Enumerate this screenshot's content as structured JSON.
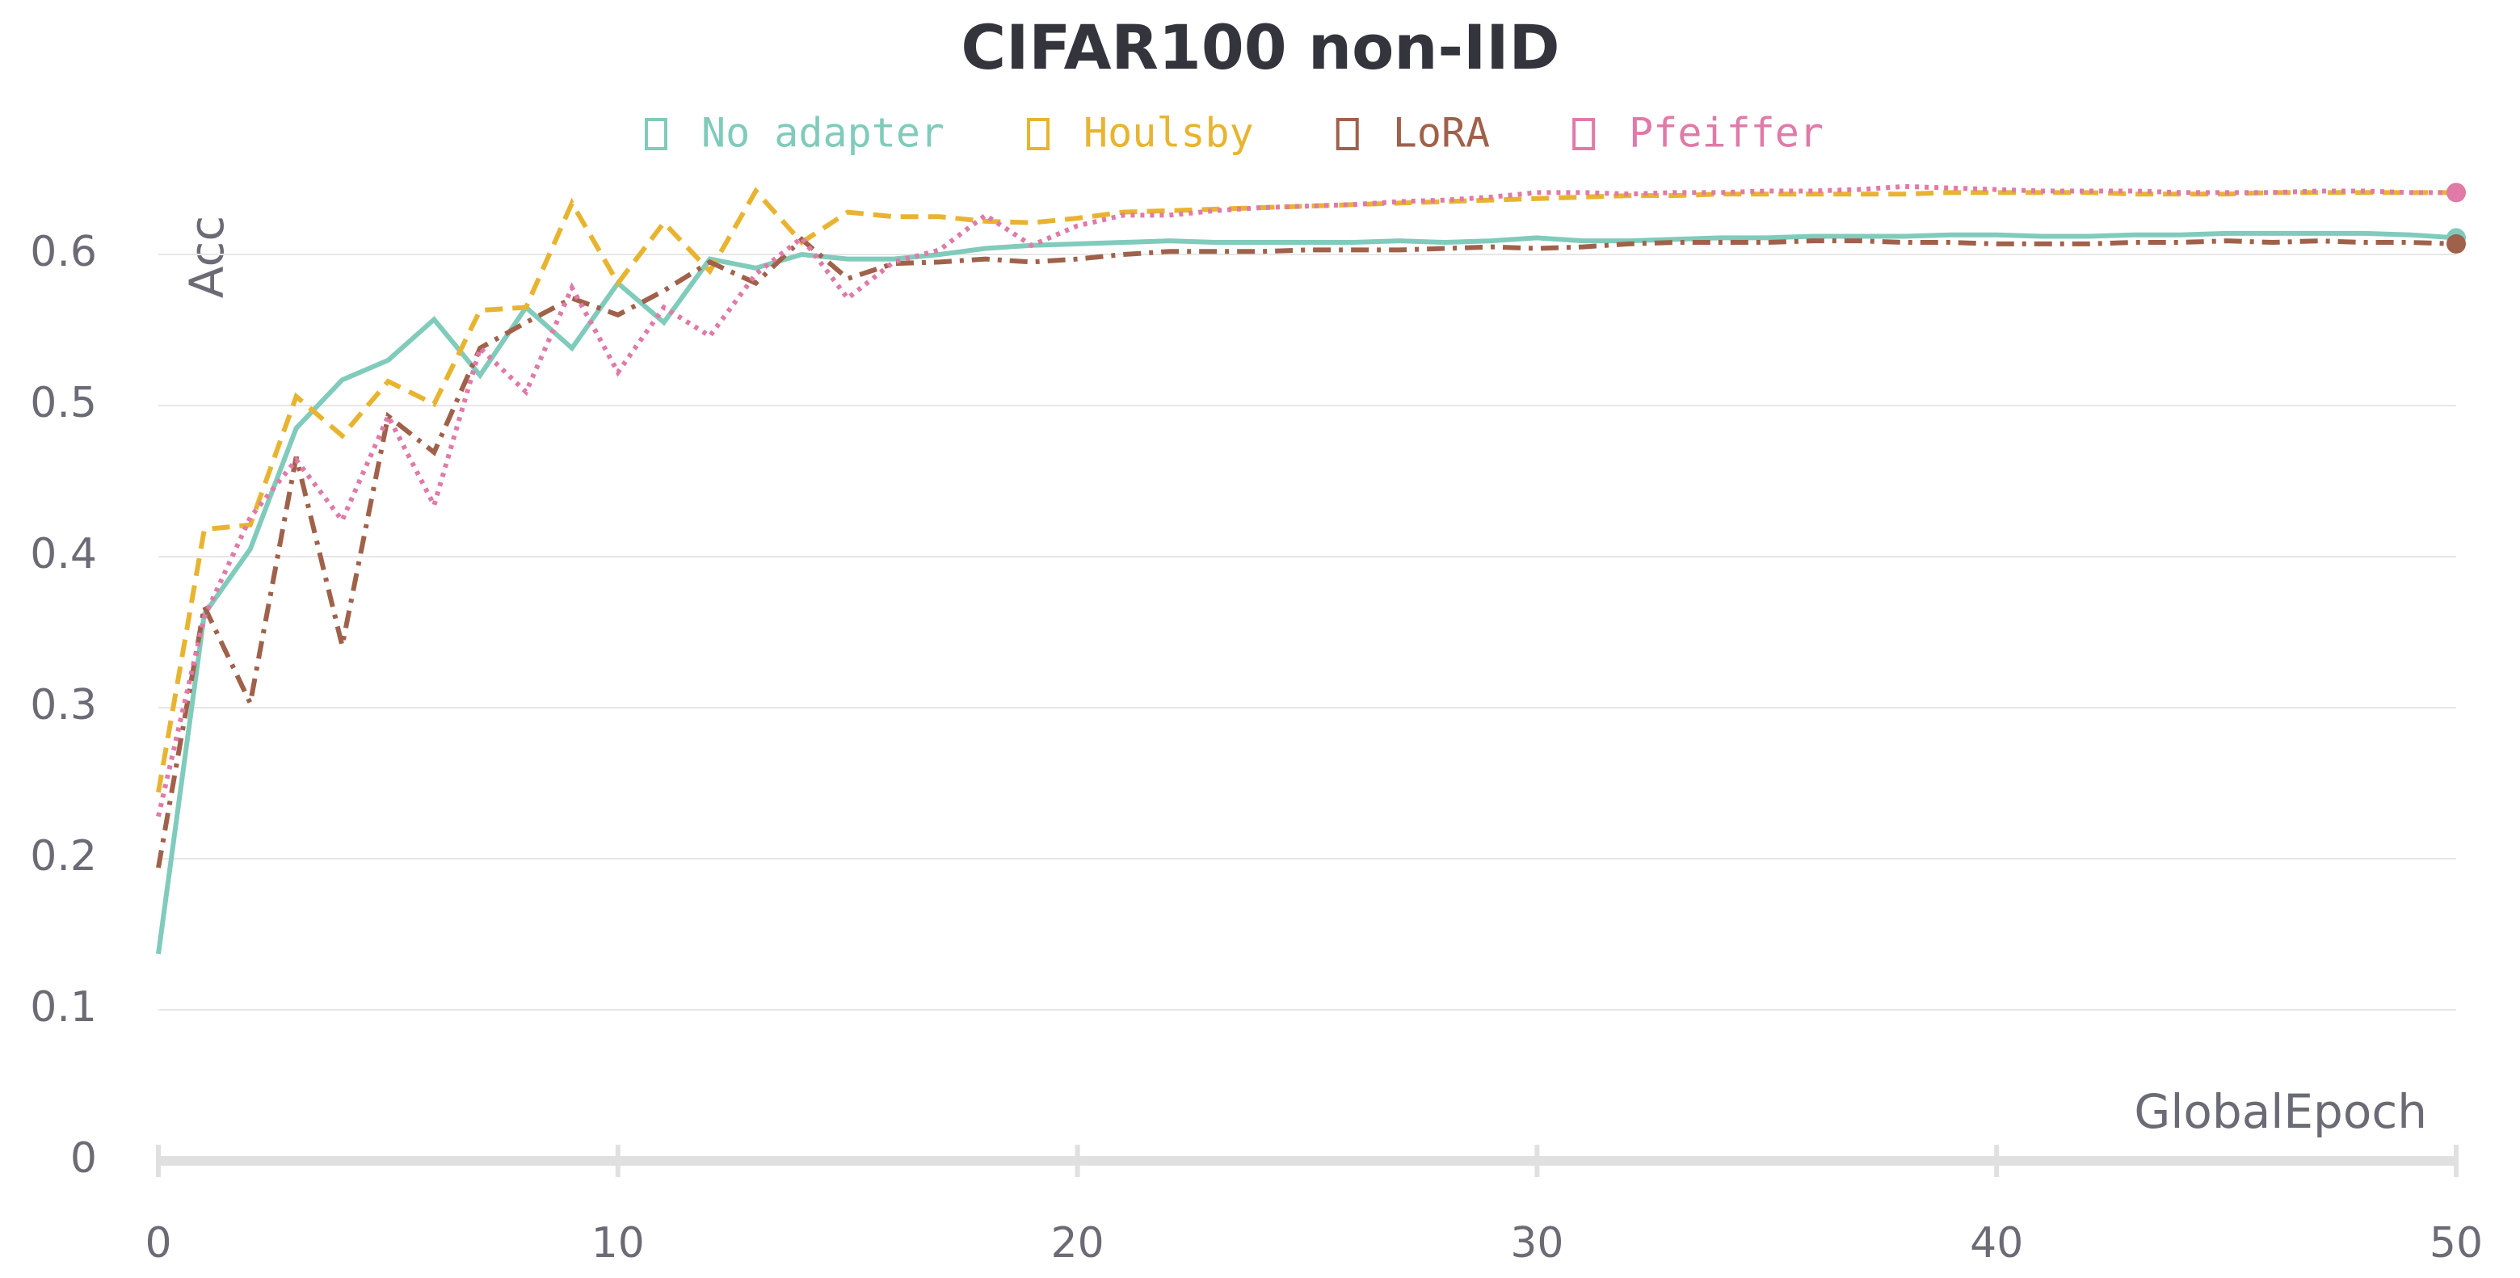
{
  "chart_data": {
    "type": "line",
    "title": "CIFAR100 non-IID",
    "xlabel": "GlobalEpoch",
    "ylabel": "Acc",
    "x": [
      0,
      1,
      2,
      3,
      4,
      5,
      6,
      7,
      8,
      9,
      10,
      11,
      12,
      13,
      14,
      15,
      16,
      17,
      18,
      19,
      20,
      21,
      22,
      23,
      24,
      25,
      26,
      27,
      28,
      29,
      30,
      31,
      32,
      33,
      34,
      35,
      36,
      37,
      38,
      39,
      40,
      41,
      42,
      43,
      44,
      45,
      46,
      47,
      48,
      49,
      50
    ],
    "xlim": [
      0,
      50
    ],
    "xticks": [
      0,
      10,
      20,
      30,
      40,
      50
    ],
    "ylim": [
      0,
      0.65
    ],
    "yticks": [
      0,
      0.1,
      0.2,
      0.3,
      0.4,
      0.5,
      0.6
    ],
    "grid": true,
    "series": [
      {
        "name": "No adapter",
        "color": "#80cbbb",
        "dash": "solid",
        "values": [
          0.137,
          0.362,
          0.405,
          0.485,
          0.517,
          0.53,
          0.557,
          0.52,
          0.565,
          0.538,
          0.581,
          0.555,
          0.597,
          0.591,
          0.6,
          0.597,
          0.597,
          0.6,
          0.604,
          0.606,
          0.607,
          0.608,
          0.609,
          0.608,
          0.608,
          0.608,
          0.608,
          0.609,
          0.608,
          0.609,
          0.611,
          0.609,
          0.609,
          0.61,
          0.611,
          0.611,
          0.612,
          0.612,
          0.612,
          0.613,
          0.613,
          0.612,
          0.612,
          0.613,
          0.613,
          0.614,
          0.614,
          0.614,
          0.614,
          0.613,
          0.611
        ]
      },
      {
        "name": "Houlsby",
        "color": "#e8b430",
        "dash": "dashed",
        "values": [
          0.244,
          0.418,
          0.421,
          0.506,
          0.48,
          0.516,
          0.501,
          0.563,
          0.565,
          0.634,
          0.581,
          0.621,
          0.589,
          0.642,
          0.608,
          0.628,
          0.625,
          0.625,
          0.622,
          0.621,
          0.624,
          0.628,
          0.629,
          0.63,
          0.631,
          0.632,
          0.633,
          0.634,
          0.635,
          0.636,
          0.637,
          0.638,
          0.639,
          0.639,
          0.64,
          0.64,
          0.64,
          0.64,
          0.64,
          0.641,
          0.641,
          0.641,
          0.641,
          0.64,
          0.64,
          0.64,
          0.641,
          0.641,
          0.641,
          0.641,
          0.641
        ]
      },
      {
        "name": "LoRA",
        "color": "#a0614a",
        "dash": "dashdot",
        "values": [
          0.194,
          0.367,
          0.303,
          0.466,
          0.341,
          0.493,
          0.469,
          0.538,
          0.555,
          0.571,
          0.56,
          0.576,
          0.595,
          0.581,
          0.61,
          0.584,
          0.594,
          0.595,
          0.597,
          0.595,
          0.597,
          0.6,
          0.602,
          0.602,
          0.602,
          0.603,
          0.603,
          0.603,
          0.604,
          0.605,
          0.604,
          0.605,
          0.607,
          0.608,
          0.608,
          0.608,
          0.609,
          0.609,
          0.608,
          0.608,
          0.607,
          0.607,
          0.607,
          0.608,
          0.608,
          0.609,
          0.608,
          0.609,
          0.608,
          0.608,
          0.607
        ]
      },
      {
        "name": "Pfeiffer",
        "color": "#e07aa8",
        "dash": "dotted",
        "values": [
          0.228,
          0.36,
          0.426,
          0.464,
          0.424,
          0.493,
          0.434,
          0.538,
          0.509,
          0.578,
          0.522,
          0.565,
          0.546,
          0.587,
          0.611,
          0.571,
          0.595,
          0.603,
          0.626,
          0.606,
          0.619,
          0.626,
          0.626,
          0.629,
          0.631,
          0.632,
          0.633,
          0.635,
          0.636,
          0.638,
          0.641,
          0.641,
          0.64,
          0.641,
          0.641,
          0.642,
          0.642,
          0.643,
          0.645,
          0.644,
          0.643,
          0.642,
          0.642,
          0.642,
          0.641,
          0.641,
          0.641,
          0.642,
          0.642,
          0.641,
          0.641
        ]
      }
    ]
  }
}
